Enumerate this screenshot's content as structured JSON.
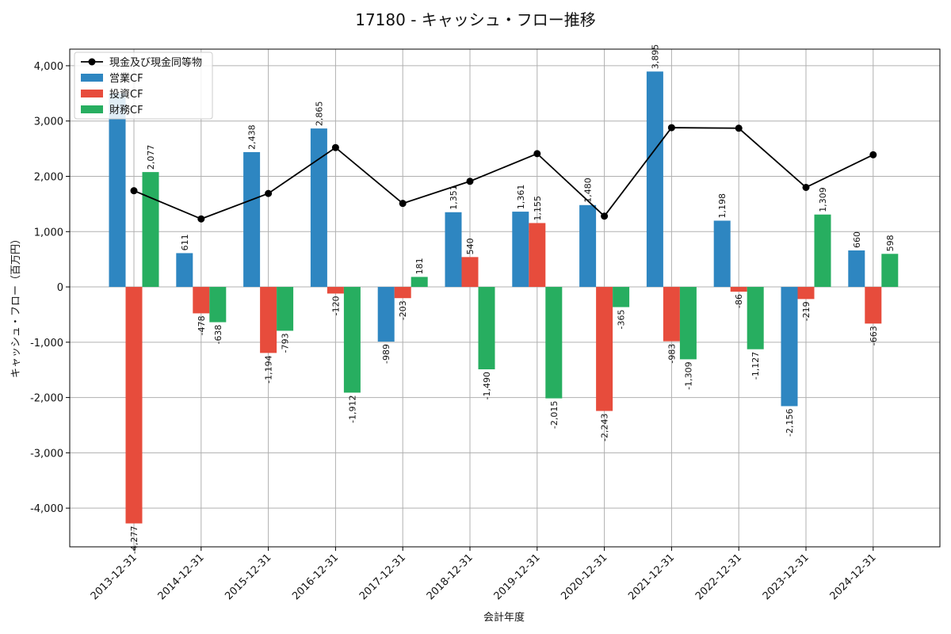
{
  "chart_data": {
    "type": "bar",
    "title": "17180 - キャッシュ・フロー推移",
    "xlabel": "会計年度",
    "ylabel": "キャッシュ・フロー（百万円）",
    "ylim": [
      -4700,
      4300
    ],
    "yticks": [
      -4000,
      -3000,
      -2000,
      -1000,
      0,
      1000,
      2000,
      3000,
      4000
    ],
    "ytick_labels": [
      "-4,000",
      "-3,000",
      "-2,000",
      "-1,000",
      "0",
      "1,000",
      "2,000",
      "3,000",
      "4,000"
    ],
    "grid": true,
    "legend_position": "top-left",
    "categories": [
      "2013-12-31",
      "2014-12-31",
      "2015-12-31",
      "2016-12-31",
      "2017-12-31",
      "2018-12-31",
      "2019-12-31",
      "2020-12-31",
      "2021-12-31",
      "2022-12-31",
      "2023-12-31",
      "2024-12-31"
    ],
    "series": [
      {
        "name": "営業CF",
        "kind": "bar",
        "color": "#2e86c1",
        "values": [
          3500,
          611,
          2438,
          2865,
          -989,
          1351,
          1361,
          1480,
          3895,
          1198,
          -2156,
          660
        ],
        "labels": [
          "",
          "611",
          "2,438",
          "2,865",
          "-989",
          "1,351",
          "1,361",
          "1,480",
          "3,895",
          "1,198",
          "-2,156",
          "660"
        ]
      },
      {
        "name": "投資CF",
        "kind": "bar",
        "color": "#e74c3c",
        "values": [
          -4277,
          -478,
          -1194,
          -120,
          -203,
          540,
          1155,
          -2243,
          -983,
          -86,
          -219,
          -663
        ],
        "labels": [
          "-4,277",
          "-478",
          "-1,194",
          "-120",
          "-203",
          "540",
          "1,155",
          "-2,243",
          "-983",
          "-86",
          "-219",
          "-663"
        ]
      },
      {
        "name": "財務CF",
        "kind": "bar",
        "color": "#27ae60",
        "values": [
          2077,
          -638,
          -793,
          -1912,
          181,
          -1490,
          -2015,
          -365,
          -1309,
          -1127,
          1309,
          598
        ],
        "labels": [
          "2,077",
          "-638",
          "-793",
          "-1,912",
          "181",
          "-1,490",
          "-2,015",
          "-365",
          "-1,309",
          "-1,127",
          "1,309",
          "598"
        ]
      },
      {
        "name": "現金及び現金同等物",
        "kind": "line",
        "color": "#000000",
        "values": [
          1740,
          1230,
          1690,
          2520,
          1510,
          1910,
          2410,
          1280,
          2880,
          2870,
          1800,
          2390
        ]
      }
    ]
  }
}
